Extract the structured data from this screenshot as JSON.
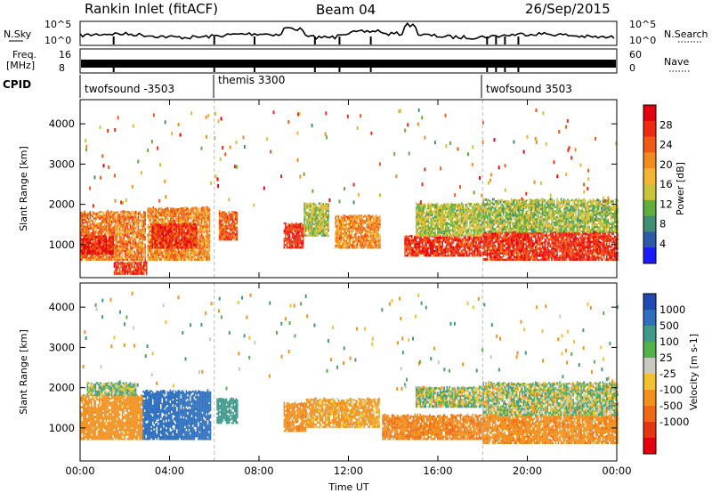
{
  "header": {
    "station": "Rankin Inlet (fitACF)",
    "beam": "Beam 04",
    "date": "26/Sep/2015"
  },
  "noise_panel": {
    "left_label": "N.Sky",
    "right_label": "N.Search",
    "left_ticks": [
      "10^5",
      "10^0"
    ],
    "right_ticks": [
      "10^5",
      "10^0"
    ]
  },
  "freq_panel": {
    "left_label_1": "Freq.",
    "left_label_2": "[MHz]",
    "right_label": "Nave",
    "left_ticks": [
      "16",
      "8"
    ],
    "right_ticks": [
      "60",
      "0"
    ]
  },
  "cpid": {
    "label": "CPID",
    "segments": [
      {
        "name": "twofsound -3503",
        "start_hour": 0
      },
      {
        "name": "themis 3300",
        "start_hour": 6
      },
      {
        "name": "twofsound 3503",
        "start_hour": 18
      }
    ]
  },
  "colors": {
    "power_scale": [
      "#1a1aff",
      "#2b5aa8",
      "#3f8f73",
      "#5fae3e",
      "#c9c43a",
      "#f2b632",
      "#f28a1e",
      "#f25a14",
      "#ee2a10",
      "#e6000c"
    ],
    "velocity_scale": [
      "#1f49b4",
      "#2f6fbf",
      "#3f9a8a",
      "#52b34a",
      "#c9c9c0",
      "#f2c12e",
      "#f2911e",
      "#ee6a14",
      "#e63310",
      "#e6000c"
    ]
  },
  "chart_data": [
    {
      "type": "heatmap",
      "name": "power",
      "xlabel": "",
      "ylabel": "Slant Range [km]",
      "xlim": [
        0,
        24
      ],
      "ylim": [
        180,
        4600
      ],
      "yticks": [
        1000,
        2000,
        3000,
        4000
      ],
      "colorbar": {
        "label": "Power [dB]",
        "ticks": [
          "4",
          "8",
          "12",
          "16",
          "20",
          "24",
          "28"
        ],
        "range": [
          0,
          32
        ]
      },
      "regions": [
        {
          "t0": 0.0,
          "t1": 2.9,
          "r0": 600,
          "r1": 1800,
          "value": 22
        },
        {
          "t0": 0.0,
          "t1": 1.5,
          "r0": 750,
          "r1": 1200,
          "value": 28
        },
        {
          "t0": 3.0,
          "t1": 5.8,
          "r0": 600,
          "r1": 1900,
          "value": 21
        },
        {
          "t0": 3.2,
          "t1": 5.2,
          "r0": 900,
          "r1": 1500,
          "value": 27
        },
        {
          "t0": 1.5,
          "t1": 3.0,
          "r0": 250,
          "r1": 550,
          "value": 26
        },
        {
          "t0": 6.2,
          "t1": 7.0,
          "r0": 1100,
          "r1": 1800,
          "value": 24
        },
        {
          "t0": 9.1,
          "t1": 10.0,
          "r0": 900,
          "r1": 1500,
          "value": 27
        },
        {
          "t0": 10.0,
          "t1": 11.1,
          "r0": 1200,
          "r1": 2000,
          "value": 14
        },
        {
          "t0": 11.4,
          "t1": 13.4,
          "r0": 900,
          "r1": 1700,
          "value": 21
        },
        {
          "t0": 14.5,
          "t1": 18.0,
          "r0": 700,
          "r1": 1200,
          "value": 27
        },
        {
          "t0": 15.0,
          "t1": 18.0,
          "r0": 1200,
          "r1": 2000,
          "value": 14
        },
        {
          "t0": 18.0,
          "t1": 24.0,
          "r0": 600,
          "r1": 1300,
          "value": 27
        },
        {
          "t0": 18.0,
          "t1": 24.0,
          "r0": 1300,
          "r1": 2100,
          "value": 13
        }
      ]
    },
    {
      "type": "heatmap",
      "name": "velocity",
      "xlabel": "Time UT",
      "ylabel": "Slant Range [km]",
      "xlim": [
        0,
        24
      ],
      "ylim": [
        180,
        4600
      ],
      "yticks": [
        1000,
        2000,
        3000,
        4000
      ],
      "xticks": [
        "00:00",
        "04:00",
        "08:00",
        "12:00",
        "16:00",
        "20:00",
        "00:00"
      ],
      "colorbar": {
        "label": "Velocity [m s-1]",
        "ticks": [
          "1000",
          "500",
          "100",
          "25",
          "-25",
          "-100",
          "-500",
          "-1000"
        ]
      },
      "regions": [
        {
          "t0": 0.0,
          "t1": 2.8,
          "r0": 700,
          "r1": 1800,
          "value": -300
        },
        {
          "t0": 2.8,
          "t1": 5.8,
          "r0": 700,
          "r1": 1900,
          "value": 800
        },
        {
          "t0": 0.3,
          "t1": 2.5,
          "r0": 1800,
          "r1": 2100,
          "value": 60
        },
        {
          "t0": 6.1,
          "t1": 7.0,
          "r0": 1100,
          "r1": 1700,
          "value": 300
        },
        {
          "t0": 9.1,
          "t1": 10.1,
          "r0": 900,
          "r1": 1600,
          "value": -400
        },
        {
          "t0": 10.1,
          "t1": 13.4,
          "r0": 1000,
          "r1": 1700,
          "value": -150
        },
        {
          "t0": 13.5,
          "t1": 18.0,
          "r0": 700,
          "r1": 1300,
          "value": -450
        },
        {
          "t0": 15.0,
          "t1": 18.0,
          "r0": 1500,
          "r1": 2000,
          "value": 10
        },
        {
          "t0": 18.0,
          "t1": 24.0,
          "r0": 600,
          "r1": 1300,
          "value": -400
        },
        {
          "t0": 18.0,
          "t1": 24.0,
          "r0": 1300,
          "r1": 2100,
          "value": 15
        }
      ]
    }
  ]
}
